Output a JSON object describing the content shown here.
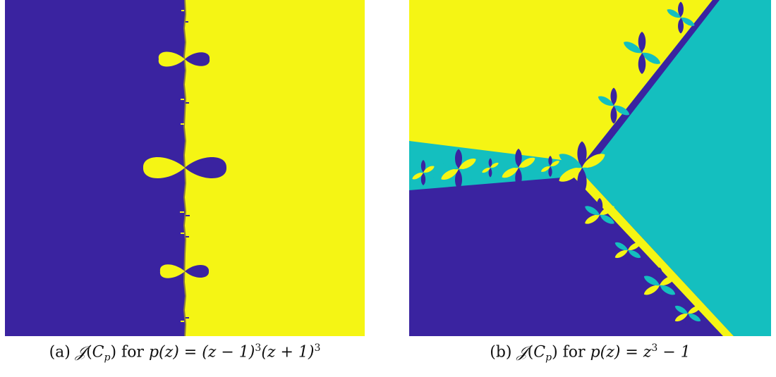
{
  "figure": {
    "colors": {
      "violet": "#3a23a0",
      "yellow": "#f5f514",
      "teal": "#14bfbf"
    },
    "panel_a": {
      "label": "(a)",
      "script_j": "𝒥",
      "c": "C",
      "sub_p": "p",
      "for_text": "for",
      "poly_lhs": "p(z) = (z − 1)",
      "exp1": "3",
      "poly_mid": "(z + 1)",
      "exp2": "3"
    },
    "panel_b": {
      "label": "(b)",
      "script_j": "𝒥",
      "c": "C",
      "sub_p": "p",
      "for_text": "for",
      "poly_lhs": "p(z) = z",
      "exp1": "3",
      "poly_tail": " − 1"
    }
  }
}
